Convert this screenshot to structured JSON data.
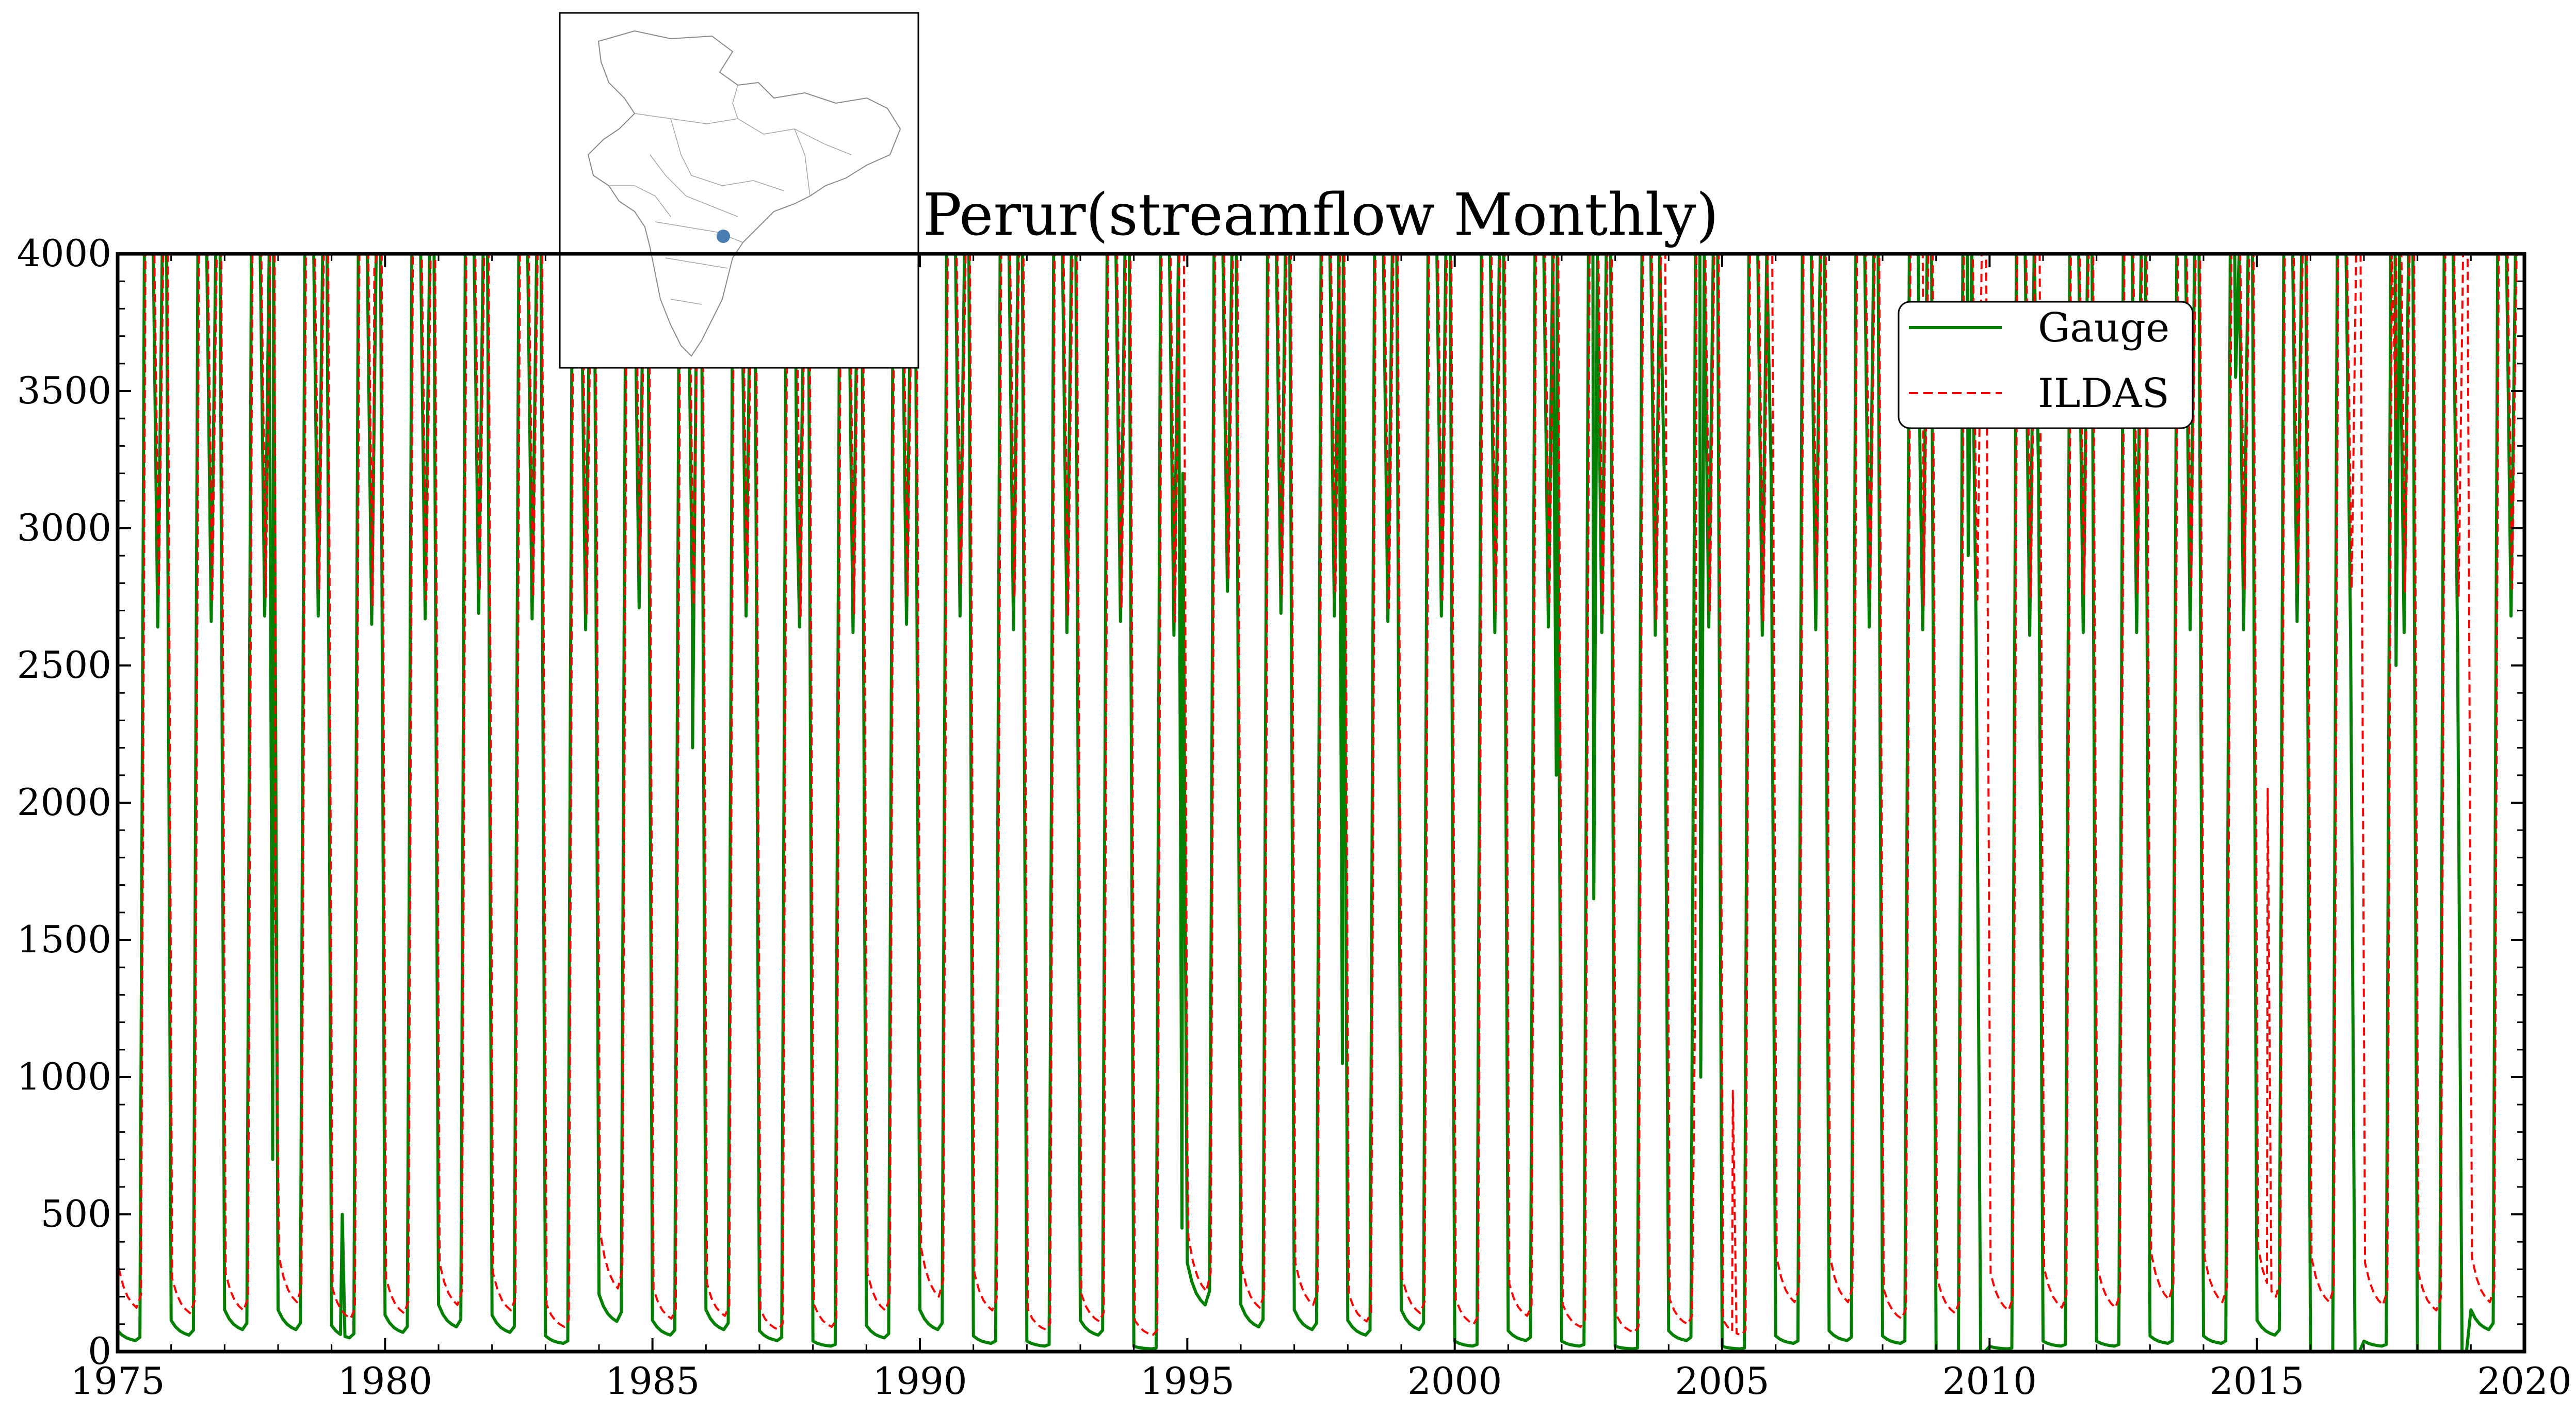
{
  "chart_data": {
    "type": "line",
    "title": "Perur(streamflow Monthly)",
    "xlabel": "",
    "ylabel": "",
    "xlim": [
      1975,
      2020
    ],
    "ylim": [
      0,
      4000
    ],
    "xticks": [
      "1975",
      "1980",
      "1985",
      "1990",
      "1995",
      "2000",
      "2005",
      "2010",
      "2015",
      "2020"
    ],
    "yticks": [
      "0",
      "500",
      "1000",
      "1500",
      "2000",
      "2500",
      "3000",
      "3500",
      "4000"
    ],
    "legend_position": "top-right",
    "grid": false,
    "series": [
      {
        "name": "Gauge",
        "color": "#008000",
        "style": "solid",
        "note": "Monthly series; each year rises sharply above 4000 during the monsoon and recedes to low base flow.",
        "start_year": 1975,
        "annual_peaks_clipped": true,
        "annual_minima": [
          40,
          60,
          80,
          80,
          50,
          70,
          90,
          70,
          30,
          110,
          60,
          80,
          40,
          20,
          50,
          80,
          30,
          20,
          60,
          10,
          170,
          90,
          80,
          60,
          80,
          20,
          40,
          20,
          10,
          40,
          10,
          30,
          40,
          30,
          0,
          10,
          20,
          20,
          30,
          30,
          60,
          0,
          20,
          0,
          80
        ],
        "notable_values": [
          {
            "x": 1977.9,
            "y": 700
          },
          {
            "x": 1979.2,
            "y": 500
          },
          {
            "x": 1985.75,
            "y": 2200
          },
          {
            "x": 1987.7,
            "y": 3100
          },
          {
            "x": 1994.9,
            "y": 450
          },
          {
            "x": 1997.9,
            "y": 1050
          },
          {
            "x": 2001.9,
            "y": 2100
          },
          {
            "x": 2002.6,
            "y": 1650
          },
          {
            "x": 2004.6,
            "y": 1000
          },
          {
            "x": 2008.7,
            "y": 3250
          },
          {
            "x": 2009.6,
            "y": 2900
          },
          {
            "x": 2014.6,
            "y": 3550
          },
          {
            "x": 2017.6,
            "y": 2500
          }
        ]
      },
      {
        "name": "ILDAS",
        "color": "#ff0000",
        "style": "dashed",
        "note": "Simulated monthly series; similar seasonal cycle with slightly higher base flow.",
        "start_year": 1975,
        "annual_peaks_clipped": true,
        "annual_minima": [
          160,
          140,
          150,
          180,
          120,
          140,
          170,
          150,
          90,
          230,
          120,
          130,
          80,
          90,
          150,
          200,
          150,
          80,
          110,
          60,
          220,
          160,
          170,
          110,
          140,
          100,
          130,
          90,
          70,
          100,
          60,
          180,
          180,
          120,
          140,
          150,
          160,
          160,
          190,
          180,
          200,
          180,
          170,
          150,
          180
        ],
        "notable_values": [
          {
            "x": 1977.95,
            "y": 1600
          },
          {
            "x": 1979.8,
            "y": 3950
          },
          {
            "x": 1987.8,
            "y": 3200
          },
          {
            "x": 1995.0,
            "y": 800
          },
          {
            "x": 2004.5,
            "y": 1400
          },
          {
            "x": 2005.2,
            "y": 950
          },
          {
            "x": 2008.75,
            "y": 4000
          },
          {
            "x": 2009.65,
            "y": 4000
          },
          {
            "x": 2015.2,
            "y": 2050
          },
          {
            "x": 2017.6,
            "y": 3400
          },
          {
            "x": 2017.7,
            "y": 4000
          }
        ]
      }
    ],
    "inset": {
      "description_label": "locator map",
      "marker_color": "#4a7fb5"
    }
  }
}
